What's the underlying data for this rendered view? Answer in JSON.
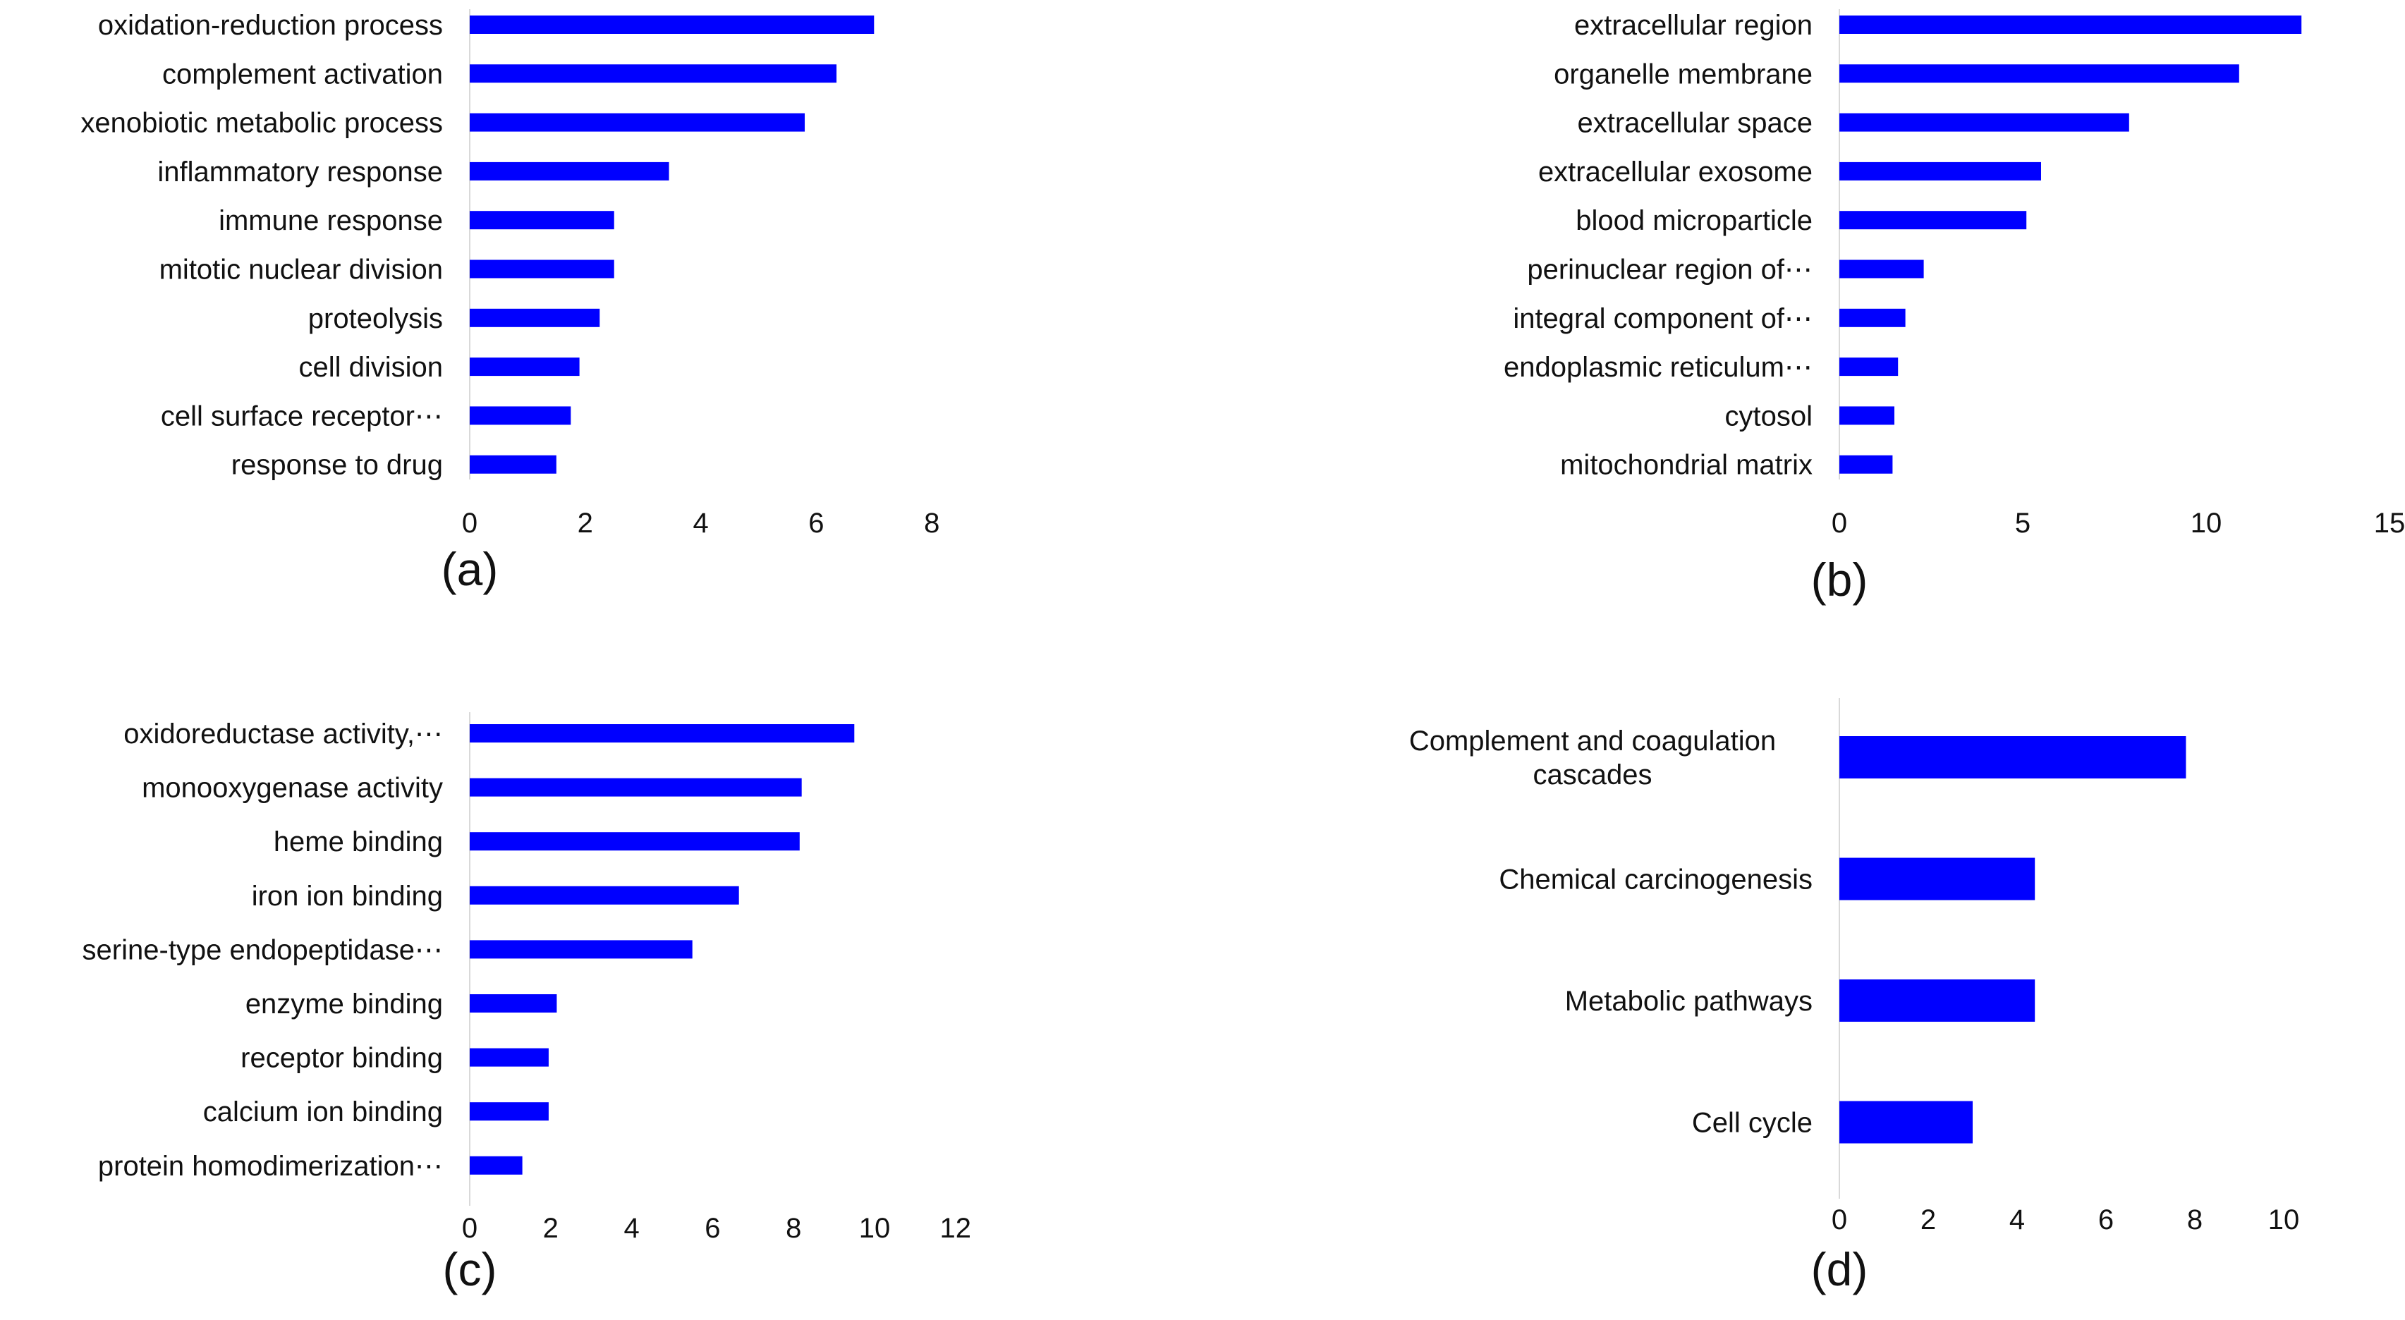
{
  "chart_data": [
    {
      "type": "bar",
      "orientation": "horizontal",
      "panel_label": "(a)",
      "title": "",
      "xlabel": "",
      "ylabel": "",
      "xlim": [
        0,
        8
      ],
      "xticks": [
        "0",
        "2",
        "4",
        "6",
        "8"
      ],
      "grid": false,
      "legend": "none",
      "color": "#0000ff",
      "categories": [
        "oxidation-reduction process",
        "complement activation",
        "xenobiotic metabolic process",
        "inflammatory response",
        "immune response",
        "mitotic nuclear division",
        "proteolysis",
        "cell division",
        "cell surface receptor⋯",
        "response to drug"
      ],
      "values": [
        7.0,
        6.35,
        5.8,
        3.45,
        2.5,
        2.5,
        2.25,
        1.9,
        1.75,
        1.5
      ]
    },
    {
      "type": "bar",
      "orientation": "horizontal",
      "panel_label": "(b)",
      "title": "",
      "xlabel": "",
      "ylabel": "",
      "xlim": [
        0,
        15
      ],
      "xticks": [
        "0",
        "5",
        "10",
        "15"
      ],
      "grid": false,
      "legend": "none",
      "color": "#0000ff",
      "categories": [
        "extracellular region",
        "organelle membrane",
        "extracellular space",
        "extracellular exosome",
        "blood microparticle",
        "perinuclear region of⋯",
        "integral component of⋯",
        "endoplasmic reticulum⋯",
        "cytosol",
        "mitochondrial matrix"
      ],
      "values": [
        12.6,
        10.9,
        7.9,
        5.5,
        5.1,
        2.3,
        1.8,
        1.6,
        1.5,
        1.45
      ]
    },
    {
      "type": "bar",
      "orientation": "horizontal",
      "panel_label": "(c)",
      "title": "",
      "xlabel": "",
      "ylabel": "",
      "xlim": [
        0,
        12
      ],
      "xticks": [
        "0",
        "2",
        "4",
        "6",
        "8",
        "10",
        "12"
      ],
      "grid": false,
      "legend": "none",
      "color": "#0000ff",
      "categories": [
        "oxidoreductase activity,⋯",
        "monooxygenase activity",
        "heme binding",
        "iron ion binding",
        "serine-type endopeptidase⋯",
        "enzyme binding",
        "receptor binding",
        "calcium ion binding",
        "protein homodimerization⋯"
      ],
      "values": [
        9.5,
        8.2,
        8.15,
        6.65,
        5.5,
        2.15,
        1.95,
        1.95,
        1.3
      ]
    },
    {
      "type": "bar",
      "orientation": "horizontal",
      "panel_label": "(d)",
      "title": "",
      "xlabel": "",
      "ylabel": "",
      "xlim": [
        0,
        10
      ],
      "xticks": [
        "0",
        "2",
        "4",
        "6",
        "8",
        "10"
      ],
      "grid": false,
      "legend": "none",
      "color": "#0000ff",
      "categories": [
        "Complement and coagulation\ncascades",
        "Chemical carcinogenesis",
        "Metabolic pathways",
        "Cell cycle"
      ],
      "values": [
        7.8,
        4.4,
        4.4,
        3.0
      ]
    }
  ]
}
